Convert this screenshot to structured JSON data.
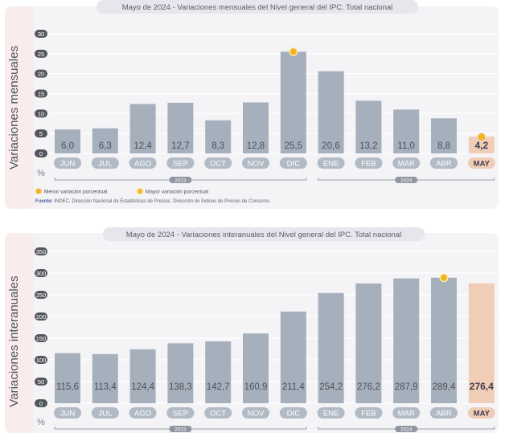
{
  "chart_data": [
    {
      "type": "bar",
      "title_prefix": "Mayo de 2024 - ",
      "title": "Variaciones mensuales del Nivel general del IPC. Total nacional",
      "ylabel": "Variaciones mensuales",
      "y_unit": "%",
      "ylim": [
        0,
        30
      ],
      "yticks": [
        0,
        5,
        10,
        15,
        20,
        25,
        30
      ],
      "categories": [
        "JUN",
        "JUL",
        "AGO",
        "SEP",
        "OCT",
        "NOV",
        "DIC",
        "ENE",
        "FEB",
        "MAR",
        "ABR",
        "MAY"
      ],
      "values": [
        6.0,
        6.3,
        12.4,
        12.7,
        8.3,
        12.8,
        25.5,
        20.6,
        13.2,
        11.0,
        8.8,
        4.2
      ],
      "value_labels": [
        "6,0",
        "6,3",
        "12,4",
        "12,7",
        "8,3",
        "12,8",
        "25,5",
        "20,6",
        "13,2",
        "11,0",
        "8,8",
        "4,2"
      ],
      "year_groups": [
        {
          "label": "2023",
          "start": 0,
          "end": 6
        },
        {
          "label": "2024",
          "start": 7,
          "end": 11
        }
      ],
      "highlight_index": 11,
      "max_marker_index": 6,
      "min_marker_index": 11,
      "legend": {
        "min_label": "Menor variación porcentual",
        "max_label": "Mayor variación porcentual"
      },
      "source_label": "Fuente:",
      "source": "INDEC, Dirección Nacional de Estadísticas de Precios. Dirección de Índices de Precios de Consumo."
    },
    {
      "type": "bar",
      "title_prefix": "Mayo de 2024 - ",
      "title": "Variaciones interanuales del Nivel general del IPC. Total nacional",
      "ylabel": "Variaciones interanuales",
      "y_unit": "%",
      "ylim": [
        0,
        350
      ],
      "yticks": [
        0,
        50,
        100,
        150,
        200,
        250,
        300,
        350
      ],
      "categories": [
        "JUN",
        "JUL",
        "AGO",
        "SEP",
        "OCT",
        "NOV",
        "DIC",
        "ENE",
        "FEB",
        "MAR",
        "ABR",
        "MAY"
      ],
      "values": [
        115.6,
        113.4,
        124.4,
        138.3,
        142.7,
        160.9,
        211.4,
        254.2,
        276.2,
        287.9,
        289.4,
        276.4
      ],
      "value_labels": [
        "115,6",
        "113,4",
        "124,4",
        "138,3",
        "142,7",
        "160,9",
        "211,4",
        "254,2",
        "276,2",
        "287,9",
        "289,4",
        "276,4"
      ],
      "year_groups": [
        {
          "label": "2023",
          "start": 0,
          "end": 6
        },
        {
          "label": "2024",
          "start": 7,
          "end": 11
        }
      ],
      "highlight_index": 11,
      "max_marker_index": 10
    }
  ],
  "colors": {
    "bar": "#a6b0bd",
    "bar_highlight": "#efcdb7",
    "panel_bg": "#f4f3f6",
    "ylabel_band": "#f9ecec",
    "title_pill": "#e7e6ec",
    "tick_badge": "#52575f",
    "marker": "#f0b521",
    "grid": "#ffffff",
    "text_dark": "#4c5058",
    "text_label": "#585e68",
    "month_pill": "#b2bac6",
    "title_accent": "#4a5ba0",
    "highlight_text": "#3f3a4c"
  }
}
